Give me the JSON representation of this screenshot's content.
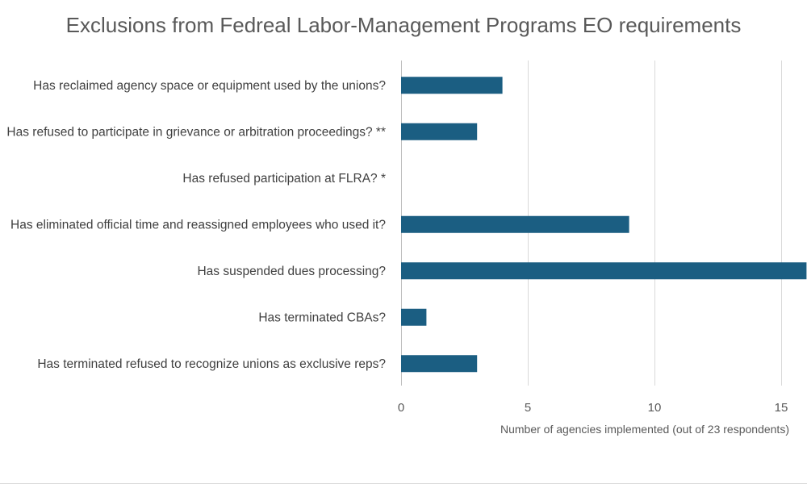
{
  "chart_data": {
    "type": "bar",
    "orientation": "horizontal",
    "title": "Exclusions from Fedreal Labor-Management Programs EO requirements",
    "xlabel": "Number of agencies implemented (out of 23 respondents)",
    "ylabel": "",
    "categories": [
      "Has reclaimed agency space or equipment used by the unions?",
      "Has refused to participate in grievance or arbitration proceedings? **",
      "Has refused participation at FLRA? *",
      "Has eliminated official time and reassigned employees who used it?",
      "Has suspended dues processing?",
      "Has terminated CBAs?",
      "Has terminated refused to recognize unions as exclusive reps?"
    ],
    "values": [
      4,
      3,
      0,
      9,
      16,
      1,
      3
    ],
    "xlim": [
      0,
      16
    ],
    "xticks": [
      "0",
      "5",
      "10",
      "15"
    ],
    "grid": "vertical",
    "bar_color": "#1b5e82",
    "legend": "none"
  }
}
